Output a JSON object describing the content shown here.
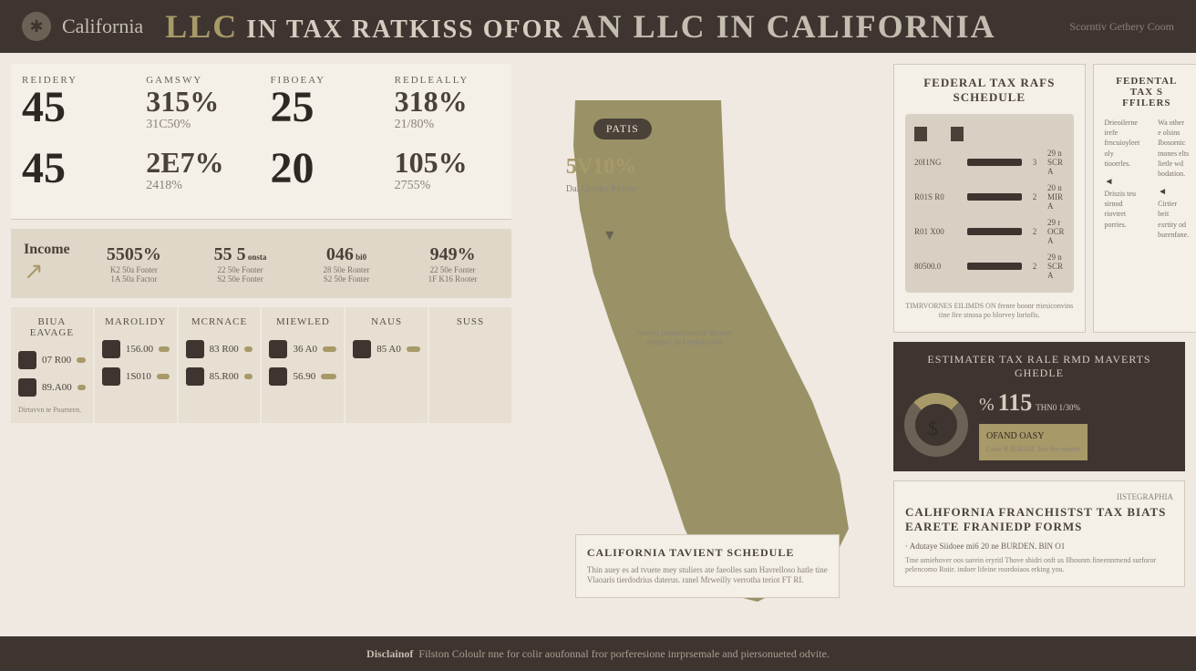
{
  "header": {
    "brand": "California",
    "title_1": "LLC",
    "title_2": " IN TAX RATKISS OFOR ",
    "title_3": "AN LLC IN CALIFORNIA",
    "source": "Scorntiv Gethery Coom"
  },
  "stats": {
    "row1": [
      {
        "label": "REIDERY",
        "big": "45",
        "pct": "",
        "sub": ""
      },
      {
        "label": "GAMSWY",
        "big": "",
        "pct": "315%",
        "sub": "31C50%"
      },
      {
        "label": "FIBOEAY",
        "big": "25",
        "pct": "",
        "sub": ""
      },
      {
        "label": "REDLEALLY",
        "big": "",
        "pct": "318%",
        "sub": "21/80%"
      }
    ],
    "row2": [
      {
        "label": "",
        "big": "45",
        "pct": "",
        "sub": ""
      },
      {
        "label": "",
        "big": "",
        "pct": "2E7%",
        "sub": "2418%"
      },
      {
        "label": "",
        "big": "20",
        "pct": "",
        "sub": ""
      },
      {
        "label": "",
        "big": "",
        "pct": "105%",
        "sub": "2755%"
      }
    ]
  },
  "income": {
    "label": "Income",
    "arrow": "↗",
    "cols": [
      {
        "pct": "5505%",
        "sub1": "K2 50a Fonter",
        "sub2": "1A 50a Factor"
      },
      {
        "pct": "55 5",
        "unit": "onsta",
        "sub1": "22 50e Fonter",
        "sub2": "S2 50e Fonter"
      },
      {
        "pct": "046",
        "unit": "bi0",
        "sub1": "28 50e Ronter",
        "sub2": "S2 50e Fonter"
      },
      {
        "pct": "949%",
        "sub1": "22 50e Fonter",
        "sub2": "1F K16 Rooter"
      }
    ]
  },
  "categories": [
    {
      "title": "BIUA EAVAGE",
      "rows": [
        {
          "v": "07 R00"
        },
        {
          "v": "89.A00"
        }
      ],
      "note": "Dirtavvn te Poarnren."
    },
    {
      "title": "MAROLIDY",
      "rows": [
        {
          "v": "156.00"
        },
        {
          "v": "1S010"
        }
      ]
    },
    {
      "title": "MCRNACE",
      "rows": [
        {
          "v": "83 R00"
        },
        {
          "v": "85.R00"
        }
      ]
    },
    {
      "title": "MIEWLED",
      "rows": [
        {
          "v": "36 A0"
        },
        {
          "v": "56.90"
        }
      ]
    },
    {
      "title": "NAUS",
      "rows": [
        {
          "v": "85 A0"
        }
      ]
    },
    {
      "title": "SUSS",
      "rows": []
    }
  ],
  "map": {
    "badge": "PATIS",
    "pct": "5V10%",
    "sub": "Dal Geodes Pirions",
    "note": "Neroni pennsbomatte Rearve empnel and mredssa08"
  },
  "ca_schedule": {
    "title": "CALIFORNIA TAVIENT SCHEDULE",
    "text": "Thin auey es ad tvuete mey stuliers ate faeolles sam Havrelloso hatle tine Vlaoaris tierdodrius daterus. ranel Mrweilly verrotha teriot FT RI."
  },
  "fed": {
    "title": "FEDERAL TAX RAFS SCHEDULE",
    "rows": [
      {
        "c1": "20I1NG",
        "c3": "3",
        "c4": "29 n SCR A"
      },
      {
        "c1": "R01S R0",
        "c3": "2",
        "c4": "20 n MIR A"
      },
      {
        "c1": "R01 X00",
        "c3": "2",
        "c4": "29 r OCR A"
      },
      {
        "c1": "80500.0",
        "c3": "2",
        "c4": "29 n SCR A"
      }
    ],
    "note": "TIMRVORNES EILIMDS ON frenre boonr rtiesiconvins tine fire stnosa po blorvey loriofis."
  },
  "filers": {
    "title": "FEDENTAL TAX S FFILERS",
    "col1": {
      "a": "Drieoilerne irefe frncuioyleet oly tioorrles.",
      "b": "Driszis teu sirnod riovtret porries."
    },
    "col2": {
      "a": "Wa other e olsins Ibosornic tnones elts lietle wd bodation.",
      "b": "Cirtier beit exrtity od burenfane."
    }
  },
  "est": {
    "title": "ESTIMATER TAX RALE RMD MAVERTS GHEDLE",
    "ring_bg": "#6b6255",
    "ring_fg": "#a89968",
    "pct_label": "%",
    "big": "115",
    "unit": "THN0 1/30%",
    "box1": "OFAND OASY",
    "box2": "Coue B BiIEIZE Teu Sto eanoet"
  },
  "franch": {
    "label": "IISTEGRAPHIA",
    "title": "CALHFORNIA FRANCHISTST TAX BIATS EARETE FRANIEDP FORMS",
    "item": "· Adutaye Siidoee mi6 20 ne BURDEN. BIN O1",
    "text": "Tme umiehover oos uarein eryritl Thove shidri onft us Ilhounm fineennrnend surforor pelencomo Roiir. indoer lifeine roordoiaos erking you."
  },
  "footer": {
    "b": "Disclainof",
    "text": " Filston Coloulr nne for colir aoufonnal fror porferesione inrprsemale and piersonueted odvite."
  },
  "colors": {
    "olive": "#9a9266",
    "dark": "#3e3530",
    "cream": "#efe9e1",
    "panel": "#f4efe7"
  }
}
